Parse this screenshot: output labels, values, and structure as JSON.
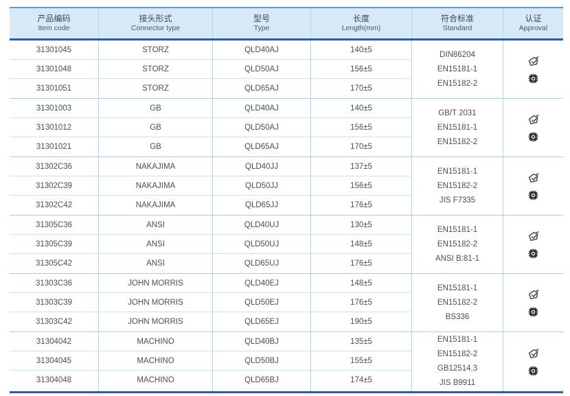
{
  "table": {
    "columns": [
      {
        "zh": "产品编码",
        "en": "Item code"
      },
      {
        "zh": "接头形式",
        "en": "Connector type"
      },
      {
        "zh": "型号",
        "en": "Type"
      },
      {
        "zh": "长度",
        "en": "Length(mm)"
      },
      {
        "zh": "符合标准",
        "en": "Standard"
      },
      {
        "zh": "认证",
        "en": "Approval"
      }
    ],
    "groups": [
      {
        "rows": [
          {
            "item_code": "31301045",
            "connector_type": "STORZ",
            "type": "QLD40AJ",
            "length": "140±5"
          },
          {
            "item_code": "31301048",
            "connector_type": "STORZ",
            "type": "QLD50AJ",
            "length": "156±5"
          },
          {
            "item_code": "31301051",
            "connector_type": "STORZ",
            "type": "QLD65AJ",
            "length": "170±5"
          }
        ],
        "standards": [
          "DIN86204",
          "EN15181-1",
          "EN15182-2"
        ],
        "approval_icons": [
          "certificate-stamp",
          "wheelmark-gear"
        ]
      },
      {
        "rows": [
          {
            "item_code": "31301003",
            "connector_type": "GB",
            "type": "QLD40AJ",
            "length": "140±5"
          },
          {
            "item_code": "31301012",
            "connector_type": "GB",
            "type": "QLD50AJ",
            "length": "156±5"
          },
          {
            "item_code": "31301021",
            "connector_type": "GB",
            "type": "QLD65AJ",
            "length": "170±5"
          }
        ],
        "standards": [
          "GB/T 2031",
          "EN15181-1",
          "EN15182-2"
        ],
        "approval_icons": [
          "certificate-stamp",
          "wheelmark-gear"
        ]
      },
      {
        "rows": [
          {
            "item_code": "31302C36",
            "connector_type": "NAKAJIMA",
            "type": "QLD40JJ",
            "length": "137±5"
          },
          {
            "item_code": "31302C39",
            "connector_type": "NAKAJIMA",
            "type": "QLD50JJ",
            "length": "156±5"
          },
          {
            "item_code": "31302C42",
            "connector_type": "NAKAJIMA",
            "type": "QLD65JJ",
            "length": "176±5"
          }
        ],
        "standards": [
          "EN15181-1",
          "EN15182-2",
          "JIS F7335"
        ],
        "approval_icons": [
          "certificate-stamp",
          "wheelmark-gear"
        ]
      },
      {
        "rows": [
          {
            "item_code": "31305C36",
            "connector_type": "ANSI",
            "type": "QLD40UJ",
            "length": "130±5"
          },
          {
            "item_code": "31305C39",
            "connector_type": "ANSI",
            "type": "QLD50UJ",
            "length": "148±5"
          },
          {
            "item_code": "31305C42",
            "connector_type": "ANSI",
            "type": "QLD65UJ",
            "length": "176±5"
          }
        ],
        "standards": [
          "EN15181-1",
          "EN15182-2",
          "ANSI B:81-1"
        ],
        "approval_icons": [
          "certificate-stamp",
          "wheelmark-gear"
        ]
      },
      {
        "rows": [
          {
            "item_code": "31303C36",
            "connector_type": "JOHN MORRIS",
            "type": "QLD40EJ",
            "length": "148±5"
          },
          {
            "item_code": "31303C39",
            "connector_type": "JOHN MORRIS",
            "type": "QLD50EJ",
            "length": "176±5"
          },
          {
            "item_code": "31303C42",
            "connector_type": "JOHN MORRIS",
            "type": "QLD65EJ",
            "length": "190±5"
          }
        ],
        "standards": [
          "EN15181-1",
          "EN15182-2",
          "BS336"
        ],
        "approval_icons": [
          "certificate-stamp",
          "wheelmark-gear"
        ]
      },
      {
        "rows": [
          {
            "item_code": "31304042",
            "connector_type": "MACHINO",
            "type": "QLD40BJ",
            "length": "135±5"
          },
          {
            "item_code": "31304045",
            "connector_type": "MACHINO",
            "type": "QLD50BJ",
            "length": "155±5"
          },
          {
            "item_code": "31304048",
            "connector_type": "MACHINO",
            "type": "QLD65BJ",
            "length": "174±5"
          }
        ],
        "standards": [
          "EN15181-1",
          "EN15182-2",
          "GB12514.3",
          "JIS B9911"
        ],
        "approval_icons": [
          "certificate-stamp",
          "wheelmark-gear"
        ]
      }
    ],
    "colors": {
      "header_bg": "#d7e9f7",
      "dark_border": "#2460a5",
      "header_top_border": "#5d9cd3",
      "column_line": "#aed6ee",
      "row_line": "#c2e6f5",
      "text": "#4d4d4d",
      "icon_dark": "#2b2b2b"
    }
  }
}
